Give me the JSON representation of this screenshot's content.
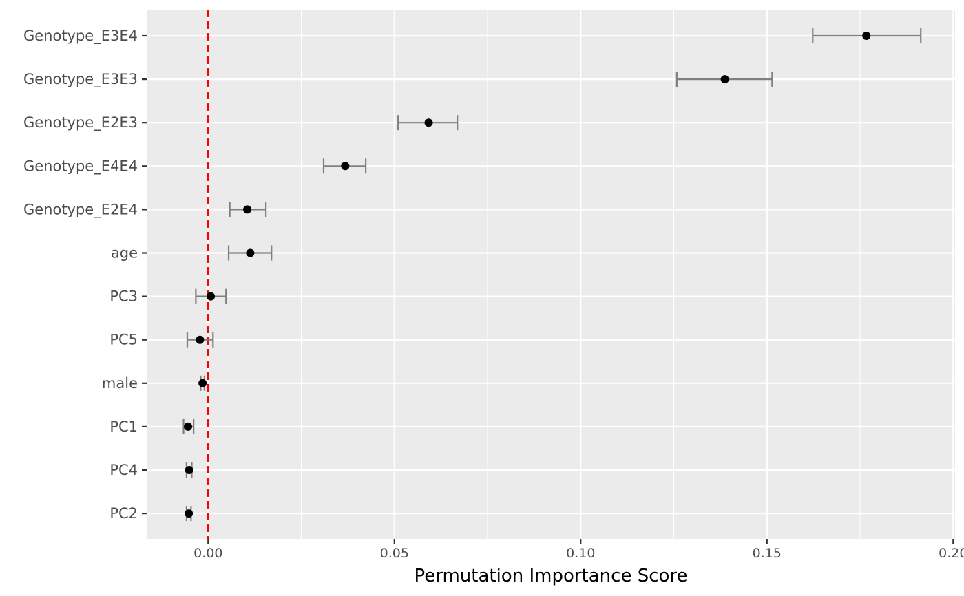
{
  "chart_data": {
    "type": "scatter",
    "subtype": "point-range (dot plot with error bars)",
    "title": "",
    "xlabel": "Permutation Importance Score",
    "ylabel": "",
    "xlim": [
      -0.0165,
      0.2005
    ],
    "x_ticks": [
      {
        "value": 0.0,
        "label": "0.00"
      },
      {
        "value": 0.05,
        "label": "0.05"
      },
      {
        "value": 0.1,
        "label": "0.10"
      },
      {
        "value": 0.15,
        "label": "0.15"
      },
      {
        "value": 0.2,
        "label": "0.20"
      }
    ],
    "x_minor_ticks": [
      0.025,
      0.075,
      0.125,
      0.175
    ],
    "reference_line": {
      "x": 0.0,
      "color": "#ff0000",
      "style": "dashed"
    },
    "grid": true,
    "panel_background": "#ebebeb",
    "point_color": "#000000",
    "errorbar_color": "#7f7f7f",
    "categories": [
      "Genotype_E3E4",
      "Genotype_E3E3",
      "Genotype_E2E3",
      "Genotype_E4E4",
      "Genotype_E2E4",
      "age",
      "PC3",
      "PC5",
      "male",
      "PC1",
      "PC4",
      "PC2"
    ],
    "values": [
      0.1767,
      0.1387,
      0.0592,
      0.0368,
      0.0105,
      0.0113,
      0.0007,
      -0.0022,
      -0.0015,
      -0.0054,
      -0.0051,
      -0.0052
    ],
    "lower": [
      0.1623,
      0.1258,
      0.051,
      0.031,
      0.0058,
      0.0055,
      -0.0033,
      -0.0056,
      -0.002,
      -0.0066,
      -0.0058,
      -0.0058
    ],
    "upper": [
      0.1913,
      0.1514,
      0.0669,
      0.0423,
      0.0155,
      0.017,
      0.0048,
      0.0013,
      -0.001,
      -0.0039,
      -0.0044,
      -0.0046
    ]
  }
}
